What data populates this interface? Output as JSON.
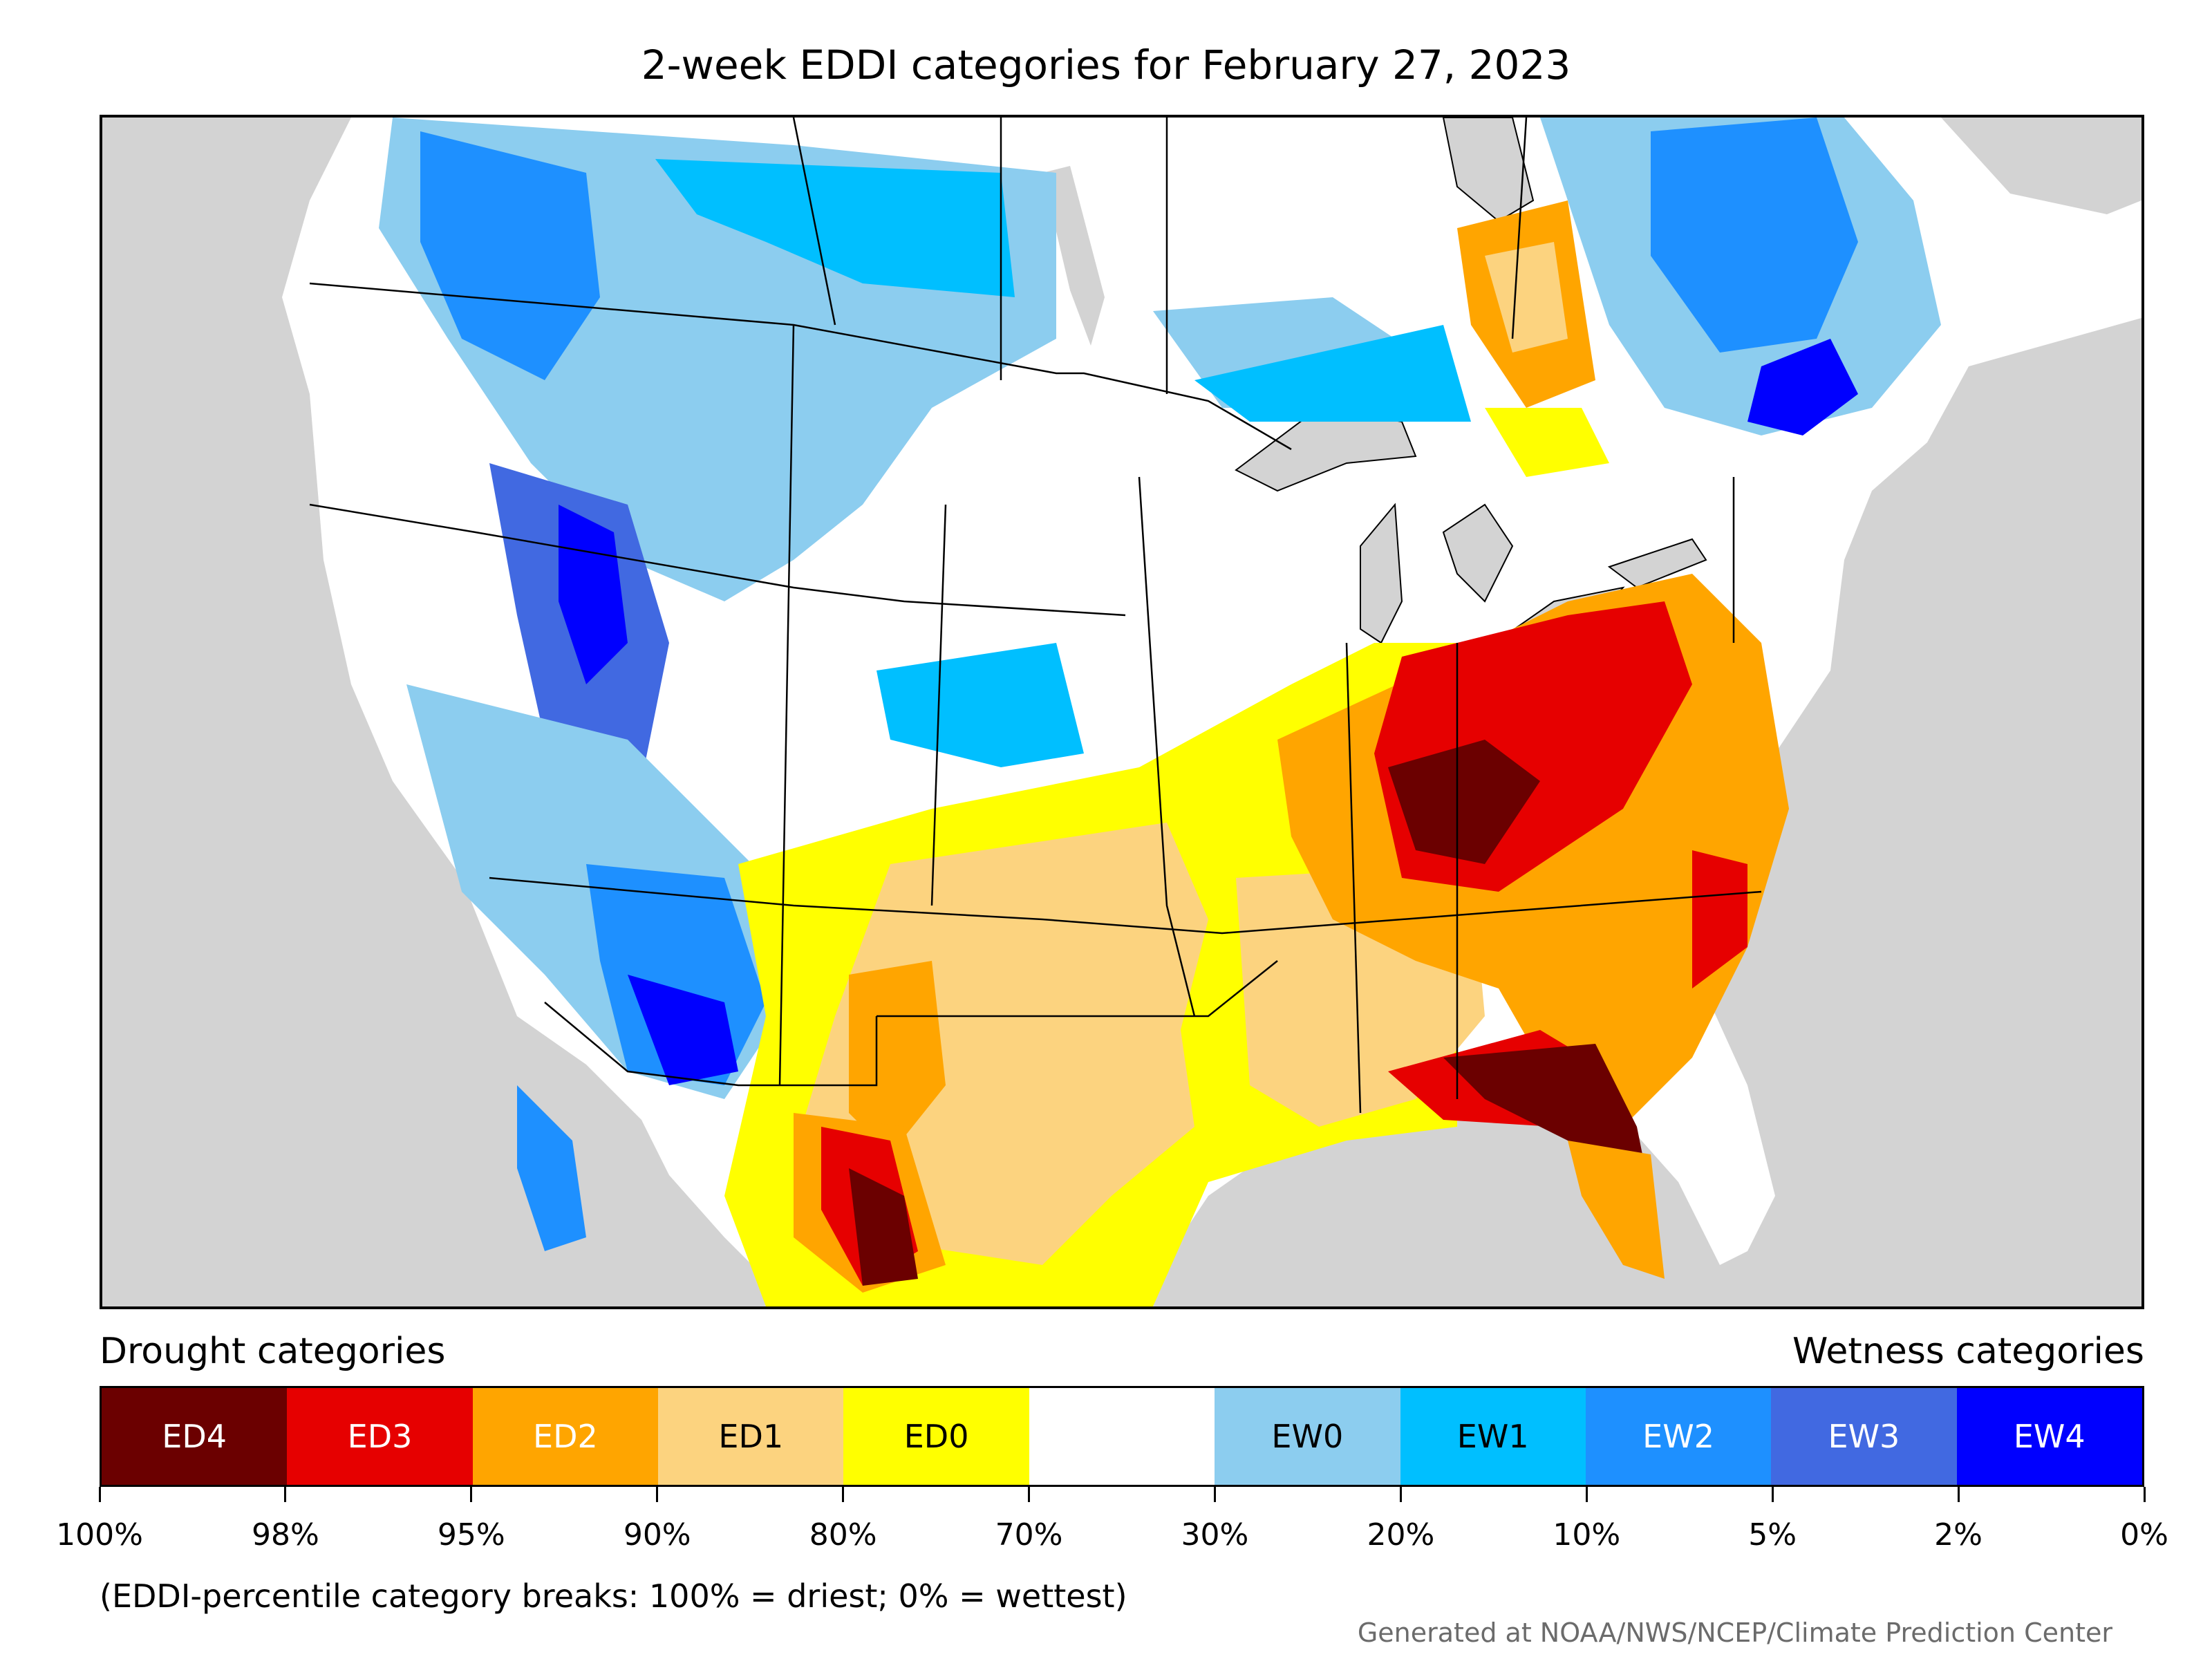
{
  "title": "2-week EDDI categories for February 27, 2023",
  "legend": {
    "drought_label": "Drought categories",
    "wetness_label": "Wetness categories",
    "categories": [
      {
        "label": "ED4",
        "color": "#6b0000",
        "text_color": "#ffffff"
      },
      {
        "label": "ED3",
        "color": "#e60000",
        "text_color": "#ffffff"
      },
      {
        "label": "ED2",
        "color": "#ffa500",
        "text_color": "#ffffff"
      },
      {
        "label": "ED1",
        "color": "#fcd37f",
        "text_color": "#000000"
      },
      {
        "label": "ED0",
        "color": "#ffff00",
        "text_color": "#000000"
      },
      {
        "label": "",
        "color": "#ffffff",
        "text_color": "#000000"
      },
      {
        "label": "EW0",
        "color": "#8ccdef",
        "text_color": "#000000"
      },
      {
        "label": "EW1",
        "color": "#00bfff",
        "text_color": "#000000"
      },
      {
        "label": "EW2",
        "color": "#1e90ff",
        "text_color": "#ffffff"
      },
      {
        "label": "EW3",
        "color": "#4169e1",
        "text_color": "#ffffff"
      },
      {
        "label": "EW4",
        "color": "#0000ff",
        "text_color": "#ffffff"
      }
    ],
    "ticks": [
      "100%",
      "98%",
      "95%",
      "90%",
      "80%",
      "70%",
      "30%",
      "20%",
      "10%",
      "5%",
      "2%",
      "0%"
    ]
  },
  "note": "(EDDI-percentile category breaks: 100% = driest; 0% = wettest)",
  "credit": "Generated at NOAA/NWS/NCEP/Climate Prediction Center",
  "map": {
    "background_color": "#d3d3d3",
    "land_color": "#ffffff"
  }
}
